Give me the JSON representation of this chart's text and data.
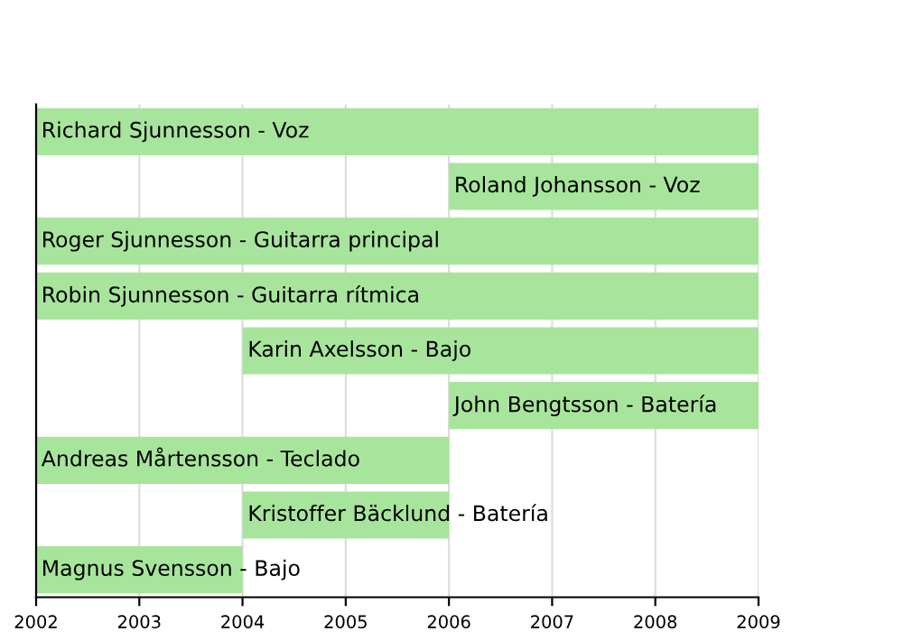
{
  "chart_data": {
    "type": "bar",
    "orientation": "horizontal",
    "categories": [
      "Richard Sjunnesson - Voz",
      "Roland Johansson - Voz",
      "Roger Sjunnesson - Guitarra principal",
      "Robin Sjunnesson - Guitarra rítmica",
      "Karin Axelsson - Bajo",
      "John Bengtsson - Batería",
      "Andreas Mårtensson - Teclado",
      "Kristoffer Bäcklund - Batería",
      "Magnus Svensson - Bajo"
    ],
    "base": [
      2002,
      2006,
      2002,
      2002,
      2004,
      2006,
      2002,
      2004,
      2002
    ],
    "values": [
      7,
      3,
      7,
      7,
      5,
      3,
      4,
      2,
      2
    ],
    "color": "#a8e59c",
    "xlim": [
      2002,
      2009
    ],
    "xticks": [
      2002,
      2003,
      2004,
      2005,
      2006,
      2007,
      2008,
      2009
    ],
    "grid": "x"
  }
}
